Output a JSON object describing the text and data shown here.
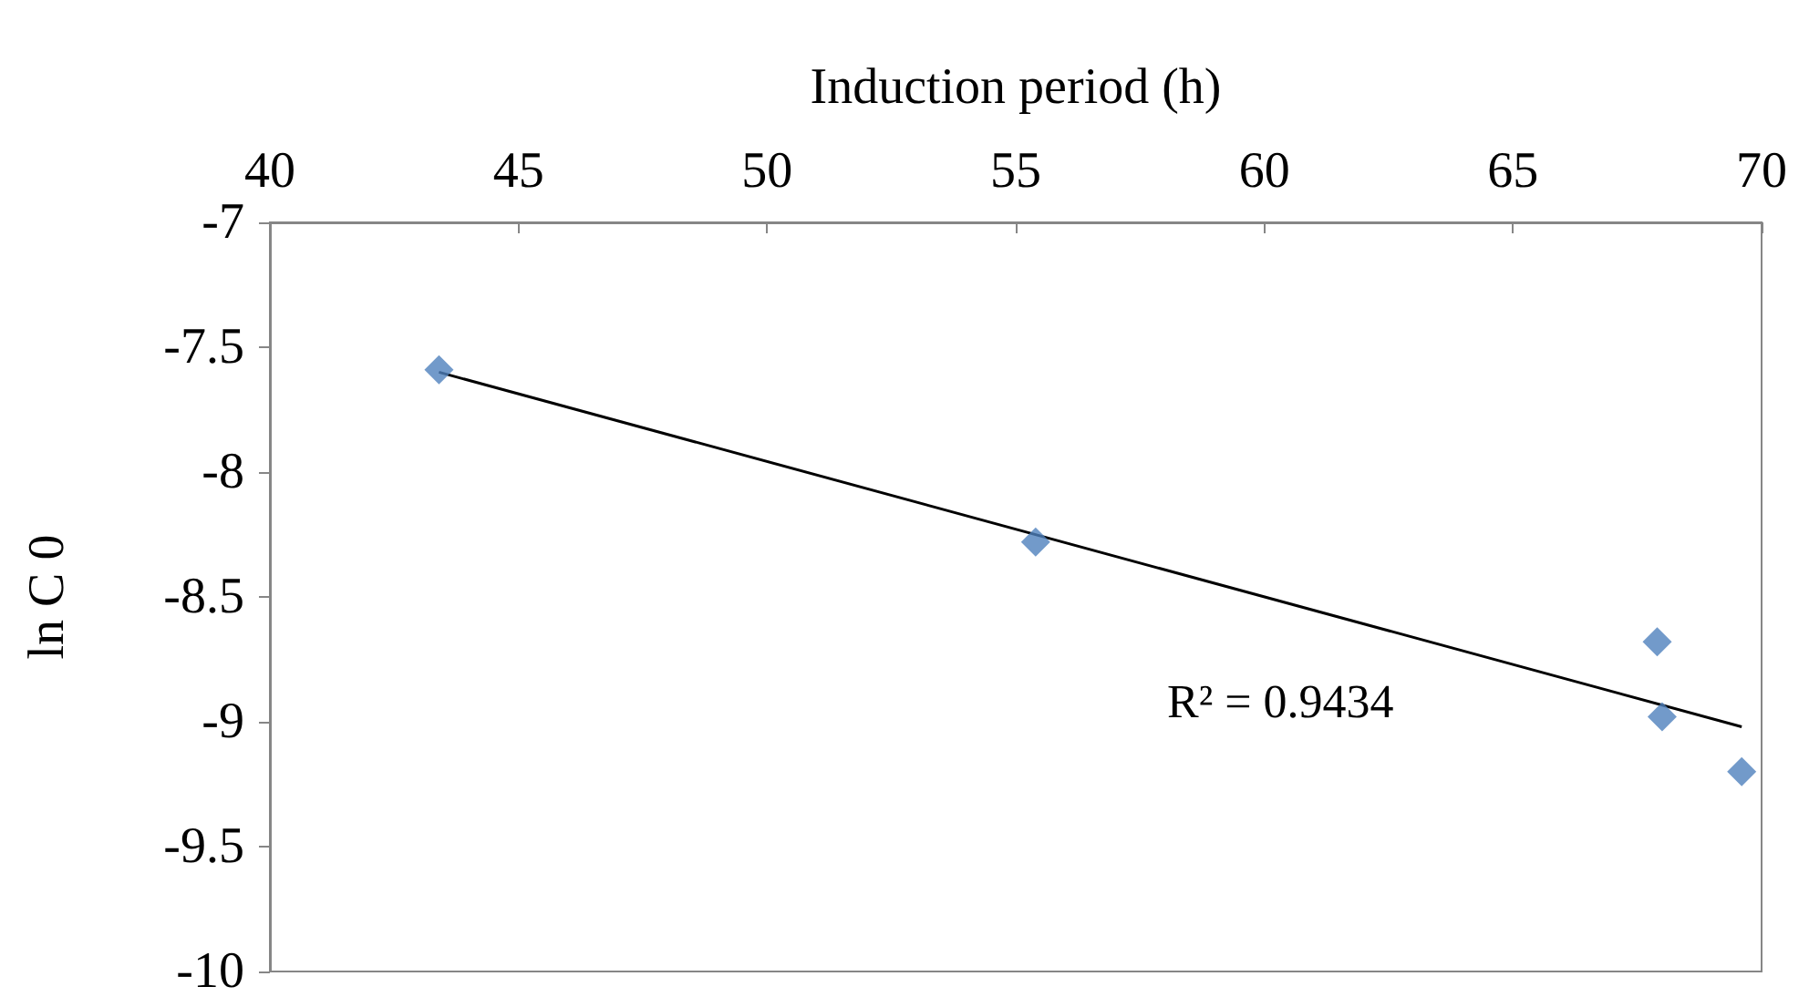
{
  "chart_data": {
    "type": "scatter",
    "xlabel": "Induction period (h)",
    "ylabel": "ln C 0",
    "series": [
      {
        "color": "#4f81bd",
        "marker": "diamond",
        "x": [
          43.4,
          55.4,
          67.9,
          68.0,
          69.6
        ],
        "values": [
          -7.59,
          -8.28,
          -8.68,
          -8.98,
          -9.2
        ]
      },
      {
        "type": "line",
        "color": "#000000",
        "marker": "none",
        "x": [
          43.4,
          69.6
        ],
        "values": [
          -7.6,
          -9.02
        ]
      }
    ],
    "xlim": [
      40,
      70
    ],
    "xticks": [
      40,
      45,
      50,
      55,
      60,
      65,
      70
    ],
    "ylim": [
      -10,
      -7
    ],
    "yticks": [
      -10,
      -9.5,
      -9,
      -8.5,
      -8,
      -7.5,
      -7
    ],
    "annotations": [
      "R² = 0.9434"
    ]
  }
}
